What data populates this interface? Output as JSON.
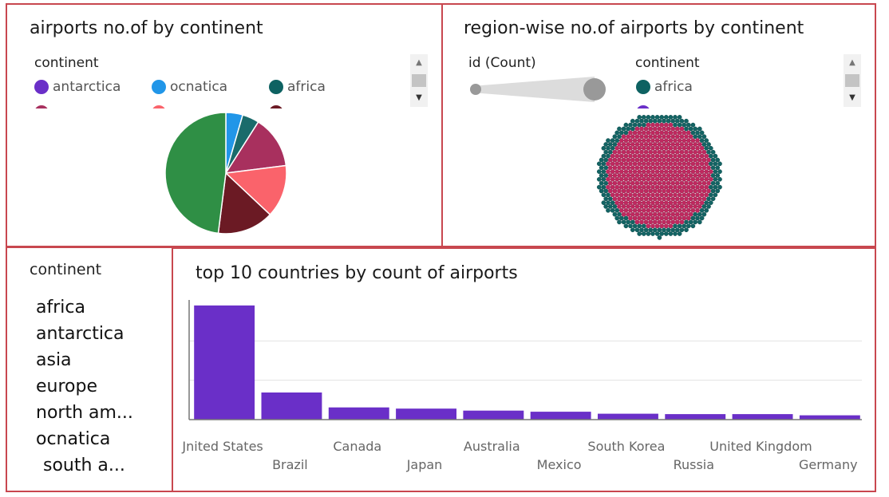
{
  "panel1": {
    "title": "airports no.of by continent",
    "legend_title": "continent",
    "legend": [
      {
        "label": "antarctica",
        "color": "#6a2fc8"
      },
      {
        "label": "ocnatica",
        "color": "#2196e8"
      },
      {
        "label": "africa",
        "color": "#0e6262"
      }
    ]
  },
  "panel2": {
    "title": "region-wise no.of airports by continent",
    "size_legend_title": "id (Count)",
    "legend_title": "continent",
    "legend": [
      {
        "label": "africa",
        "color": "#0e6262"
      }
    ]
  },
  "panel3": {
    "title": "continent",
    "items": [
      "africa",
      "antarctica",
      "asia",
      "europe",
      "north am...",
      "ocnatica",
      "south a..."
    ]
  },
  "chart_data": [
    {
      "type": "pie",
      "title": "airports no.of by continent",
      "slices": [
        {
          "label": "ocnatica",
          "color": "#2196e8",
          "value": 4.5
        },
        {
          "label": "africa",
          "color": "#1a6b6b",
          "value": 4.5
        },
        {
          "label": "",
          "color": "#a8305e",
          "value": 14
        },
        {
          "label": "",
          "color": "#fa636b",
          "value": 14
        },
        {
          "label": "",
          "color": "#6b1a24",
          "value": 15
        },
        {
          "label": "",
          "color": "#2f8f45",
          "value": 48
        }
      ]
    },
    {
      "type": "scatter",
      "title": "region-wise no.of airports by continent",
      "note_colors": {
        "outer": "#136464",
        "inner": "#c0285f"
      }
    },
    {
      "type": "bar",
      "title": "top 10 countries by count of airports",
      "categories": [
        "United States",
        "Brazil",
        "Canada",
        "Japan",
        "Australia",
        "Mexico",
        "South Korea",
        "Russia",
        "United Kingdom",
        "Germany"
      ],
      "tick_labels": [
        "Jnited States",
        "Brazil",
        "Canada",
        "Japan",
        "Australia",
        "Mexico",
        "South Korea",
        "Russia",
        "United Kingdom",
        "Germany"
      ],
      "values": [
        29000,
        6900,
        3100,
        2800,
        2300,
        2000,
        1500,
        1400,
        1400,
        1100
      ],
      "ylim": [
        0,
        30000
      ],
      "color": "#6a2fc8",
      "grid": true
    }
  ]
}
